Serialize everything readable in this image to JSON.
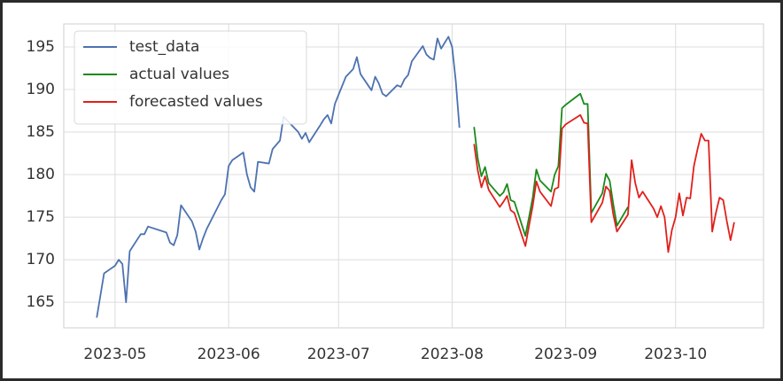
{
  "chart_data": {
    "type": "line",
    "xlim": [
      "2023-04-17",
      "2023-10-25"
    ],
    "xticks": [
      {
        "value": "2023-05-01",
        "label": "2023-05"
      },
      {
        "value": "2023-06-01",
        "label": "2023-06"
      },
      {
        "value": "2023-07-01",
        "label": "2023-07"
      },
      {
        "value": "2023-08-01",
        "label": "2023-08"
      },
      {
        "value": "2023-09-01",
        "label": "2023-09"
      },
      {
        "value": "2023-10-01",
        "label": "2023-10"
      }
    ],
    "ylim": [
      162.0,
      197.7
    ],
    "yticks": [
      165,
      170,
      175,
      180,
      185,
      190,
      195
    ],
    "grid": true,
    "legend": "upper left",
    "series": [
      {
        "name": "test_data",
        "color": "#4c72b0",
        "x": [
          "2023-04-26",
          "2023-04-28",
          "2023-05-01",
          "2023-05-02",
          "2023-05-03",
          "2023-05-04",
          "2023-05-05",
          "2023-05-08",
          "2023-05-09",
          "2023-05-10",
          "2023-05-15",
          "2023-05-16",
          "2023-05-17",
          "2023-05-18",
          "2023-05-19",
          "2023-05-22",
          "2023-05-23",
          "2023-05-24",
          "2023-05-25",
          "2023-05-26",
          "2023-05-30",
          "2023-05-31",
          "2023-06-01",
          "2023-06-02",
          "2023-06-05",
          "2023-06-06",
          "2023-06-07",
          "2023-06-08",
          "2023-06-09",
          "2023-06-12",
          "2023-06-13",
          "2023-06-15",
          "2023-06-16",
          "2023-06-20",
          "2023-06-21",
          "2023-06-22",
          "2023-06-23",
          "2023-06-26",
          "2023-06-27",
          "2023-06-28",
          "2023-06-29",
          "2023-06-30",
          "2023-07-03",
          "2023-07-05",
          "2023-07-06",
          "2023-07-07",
          "2023-07-10",
          "2023-07-11",
          "2023-07-12",
          "2023-07-13",
          "2023-07-14",
          "2023-07-17",
          "2023-07-18",
          "2023-07-19",
          "2023-07-20",
          "2023-07-21",
          "2023-07-24",
          "2023-07-25",
          "2023-07-26",
          "2023-07-27",
          "2023-07-28",
          "2023-07-29",
          "2023-07-30",
          "2023-07-31",
          "2023-08-01",
          "2023-08-02",
          "2023-08-03"
        ],
        "values": [
          163.2,
          168.4,
          169.3,
          170.0,
          169.5,
          165.0,
          171.0,
          173.0,
          173.0,
          173.9,
          173.2,
          172.0,
          171.7,
          172.9,
          176.4,
          174.5,
          173.3,
          171.2,
          172.5,
          173.6,
          177.0,
          177.7,
          181.0,
          181.7,
          182.6,
          180.0,
          178.5,
          178.0,
          181.5,
          181.3,
          183.0,
          184.0,
          186.8,
          185.0,
          184.2,
          184.9,
          183.8,
          185.8,
          186.5,
          187.0,
          186.0,
          188.3,
          191.5,
          192.4,
          193.8,
          191.8,
          189.9,
          191.5,
          190.7,
          189.5,
          189.2,
          190.5,
          190.3,
          191.2,
          191.7,
          193.3,
          195.1,
          194.1,
          193.7,
          193.5,
          196.0,
          194.8,
          195.5,
          196.2,
          195.0,
          191.0,
          185.5
        ]
      },
      {
        "name": "actual values",
        "color": "#1a8a1a",
        "x": [
          "2023-08-07",
          "2023-08-08",
          "2023-08-09",
          "2023-08-10",
          "2023-08-11",
          "2023-08-14",
          "2023-08-15",
          "2023-08-16",
          "2023-08-17",
          "2023-08-18",
          "2023-08-21",
          "2023-08-22",
          "2023-08-23",
          "2023-08-24",
          "2023-08-25",
          "2023-08-28",
          "2023-08-29",
          "2023-08-30",
          "2023-08-31",
          "2023-09-01",
          "2023-09-05",
          "2023-09-06",
          "2023-09-07",
          "2023-09-08",
          "2023-09-11",
          "2023-09-12",
          "2023-09-13",
          "2023-09-14",
          "2023-09-15",
          "2023-09-18"
        ],
        "values": [
          185.6,
          181.9,
          179.8,
          180.9,
          179.0,
          177.5,
          177.9,
          178.9,
          177.0,
          176.8,
          172.8,
          175.0,
          177.3,
          180.6,
          179.3,
          178.0,
          180.0,
          181.0,
          187.8,
          188.2,
          189.5,
          188.3,
          188.3,
          175.5,
          177.8,
          180.1,
          179.3,
          176.5,
          174.0,
          176.2
        ]
      },
      {
        "name": "forecasted values",
        "color": "#e0201b",
        "x": [
          "2023-08-07",
          "2023-08-08",
          "2023-08-09",
          "2023-08-10",
          "2023-08-11",
          "2023-08-14",
          "2023-08-15",
          "2023-08-16",
          "2023-08-17",
          "2023-08-18",
          "2023-08-21",
          "2023-08-22",
          "2023-08-23",
          "2023-08-24",
          "2023-08-25",
          "2023-08-28",
          "2023-08-29",
          "2023-08-30",
          "2023-08-31",
          "2023-09-01",
          "2023-09-05",
          "2023-09-06",
          "2023-09-07",
          "2023-09-08",
          "2023-09-11",
          "2023-09-12",
          "2023-09-13",
          "2023-09-14",
          "2023-09-15",
          "2023-09-18",
          "2023-09-19",
          "2023-09-20",
          "2023-09-21",
          "2023-09-22",
          "2023-09-25",
          "2023-09-26",
          "2023-09-27",
          "2023-09-28",
          "2023-09-29",
          "2023-09-30",
          "2023-10-01",
          "2023-10-02",
          "2023-10-03",
          "2023-10-04",
          "2023-10-05",
          "2023-10-06",
          "2023-10-07",
          "2023-10-08",
          "2023-10-09",
          "2023-10-10",
          "2023-10-11",
          "2023-10-12",
          "2023-10-13",
          "2023-10-14",
          "2023-10-15",
          "2023-10-16",
          "2023-10-17"
        ],
        "values": [
          183.6,
          180.5,
          178.5,
          179.8,
          178.2,
          176.2,
          176.8,
          177.5,
          175.8,
          175.5,
          171.6,
          174.0,
          176.3,
          179.2,
          178.0,
          176.3,
          178.3,
          178.5,
          185.4,
          185.9,
          187.0,
          186.1,
          186.0,
          174.4,
          176.7,
          178.6,
          178.1,
          175.3,
          173.3,
          175.3,
          181.7,
          179.0,
          177.3,
          178.0,
          176.0,
          175.0,
          176.3,
          175.0,
          170.9,
          173.5,
          175.0,
          177.8,
          175.2,
          177.3,
          177.2,
          181.0,
          183.0,
          184.8,
          184.0,
          184.0,
          173.3,
          175.5,
          177.3,
          177.0,
          174.5,
          172.3,
          174.4
        ]
      }
    ]
  }
}
